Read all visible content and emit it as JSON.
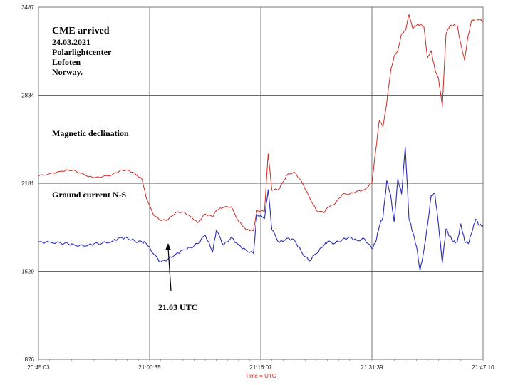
{
  "chart_data": {
    "type": "line",
    "title": "",
    "xlabel": "Time = UTC",
    "ylabel": "",
    "x_ticks": [
      "20:45:03",
      "21:00:35",
      "21:16:07",
      "21:31:39",
      "21:47:10"
    ],
    "y_ticks": [
      876,
      1529,
      2181,
      2834,
      3487
    ],
    "ylim": [
      876,
      3487
    ],
    "grid": true,
    "annotations": {
      "header": [
        "CME arrived",
        "24.03.2021",
        "Polarlightcenter",
        "Lofoten",
        "Norway."
      ],
      "arrow_label": "21.03 UTC"
    },
    "series": [
      {
        "name": "Magnetic declination",
        "color": "#cc2a22",
        "points": [
          [
            0,
            2236
          ],
          [
            3,
            2252
          ],
          [
            6,
            2270
          ],
          [
            8,
            2280
          ],
          [
            10,
            2273
          ],
          [
            13,
            2236
          ],
          [
            15,
            2223
          ],
          [
            17,
            2227
          ],
          [
            20,
            2246
          ],
          [
            22,
            2275
          ],
          [
            24,
            2280
          ],
          [
            26,
            2255
          ],
          [
            28,
            2209
          ],
          [
            29,
            2081
          ],
          [
            31,
            1948
          ],
          [
            33,
            1905
          ],
          [
            35,
            1912
          ],
          [
            37,
            1964
          ],
          [
            39,
            1969
          ],
          [
            41,
            1937
          ],
          [
            43,
            1889
          ],
          [
            45,
            1953
          ],
          [
            47,
            1932
          ],
          [
            48,
            1980
          ],
          [
            50,
            2004
          ],
          [
            52,
            2007
          ],
          [
            54,
            1900
          ],
          [
            56,
            1840
          ],
          [
            58,
            1830
          ],
          [
            59,
            1980
          ],
          [
            61,
            1970
          ],
          [
            62,
            2400
          ],
          [
            63,
            2128
          ],
          [
            65,
            2140
          ],
          [
            67,
            2241
          ],
          [
            69,
            2265
          ],
          [
            71,
            2196
          ],
          [
            73,
            2085
          ],
          [
            75,
            1979
          ],
          [
            77,
            1963
          ],
          [
            78,
            2001
          ],
          [
            80,
            2028
          ],
          [
            82,
            2099
          ],
          [
            84,
            2103
          ],
          [
            86,
            2123
          ],
          [
            88,
            2134
          ],
          [
            90,
            2187
          ],
          [
            91,
            2420
          ],
          [
            92,
            2648
          ],
          [
            93,
            2600
          ],
          [
            94,
            2780
          ],
          [
            95,
            3004
          ],
          [
            96,
            3124
          ],
          [
            97,
            3165
          ],
          [
            98,
            3291
          ],
          [
            99,
            3310
          ],
          [
            100,
            3432
          ],
          [
            101,
            3330
          ],
          [
            102,
            3352
          ],
          [
            103,
            3358
          ],
          [
            104,
            3347
          ],
          [
            105,
            3110
          ],
          [
            106,
            3164
          ],
          [
            107,
            3025
          ],
          [
            108,
            2954
          ],
          [
            109,
            2752
          ],
          [
            110,
            3290
          ],
          [
            111,
            3348
          ],
          [
            112,
            3353
          ],
          [
            113,
            3351
          ],
          [
            114,
            3212
          ],
          [
            115,
            3095
          ],
          [
            116,
            3280
          ],
          [
            117,
            3395
          ],
          [
            118,
            3383
          ],
          [
            119,
            3397
          ],
          [
            120,
            3378
          ]
        ]
      },
      {
        "name": "Ground current N-S",
        "color": "#2a2eb8",
        "points": [
          [
            0,
            1747
          ],
          [
            3,
            1746
          ],
          [
            6,
            1738
          ],
          [
            8,
            1734
          ],
          [
            10,
            1719
          ],
          [
            13,
            1717
          ],
          [
            15,
            1733
          ],
          [
            17,
            1734
          ],
          [
            20,
            1753
          ],
          [
            22,
            1780
          ],
          [
            24,
            1775
          ],
          [
            26,
            1753
          ],
          [
            28,
            1745
          ],
          [
            29,
            1738
          ],
          [
            31,
            1659
          ],
          [
            33,
            1597
          ],
          [
            35,
            1620
          ],
          [
            37,
            1655
          ],
          [
            39,
            1688
          ],
          [
            41,
            1703
          ],
          [
            43,
            1734
          ],
          [
            45,
            1797
          ],
          [
            47,
            1671
          ],
          [
            48,
            1833
          ],
          [
            50,
            1722
          ],
          [
            52,
            1779
          ],
          [
            54,
            1726
          ],
          [
            56,
            1685
          ],
          [
            58,
            1662
          ],
          [
            59,
            1950
          ],
          [
            61,
            1919
          ],
          [
            62,
            2133
          ],
          [
            63,
            1837
          ],
          [
            65,
            1741
          ],
          [
            67,
            1773
          ],
          [
            69,
            1765
          ],
          [
            71,
            1672
          ],
          [
            73,
            1605
          ],
          [
            75,
            1660
          ],
          [
            77,
            1720
          ],
          [
            78,
            1748
          ],
          [
            80,
            1737
          ],
          [
            82,
            1763
          ],
          [
            84,
            1783
          ],
          [
            86,
            1757
          ],
          [
            88,
            1769
          ],
          [
            90,
            1697
          ],
          [
            91,
            1743
          ],
          [
            92,
            1862
          ],
          [
            93,
            1935
          ],
          [
            94,
            2200
          ],
          [
            95,
            2102
          ],
          [
            96,
            1895
          ],
          [
            97,
            2215
          ],
          [
            98,
            2101
          ],
          [
            99,
            2450
          ],
          [
            100,
            1920
          ],
          [
            101,
            1820
          ],
          [
            102,
            1716
          ],
          [
            103,
            1534
          ],
          [
            104,
            1680
          ],
          [
            105,
            1870
          ],
          [
            106,
            2091
          ],
          [
            107,
            2102
          ],
          [
            108,
            1864
          ],
          [
            109,
            1591
          ],
          [
            110,
            1843
          ],
          [
            111,
            1789
          ],
          [
            112,
            1750
          ],
          [
            113,
            1745
          ],
          [
            114,
            1880
          ],
          [
            115,
            1756
          ],
          [
            116,
            1734
          ],
          [
            117,
            1820
          ],
          [
            118,
            1915
          ],
          [
            119,
            1870
          ],
          [
            120,
            1869
          ]
        ]
      }
    ]
  }
}
